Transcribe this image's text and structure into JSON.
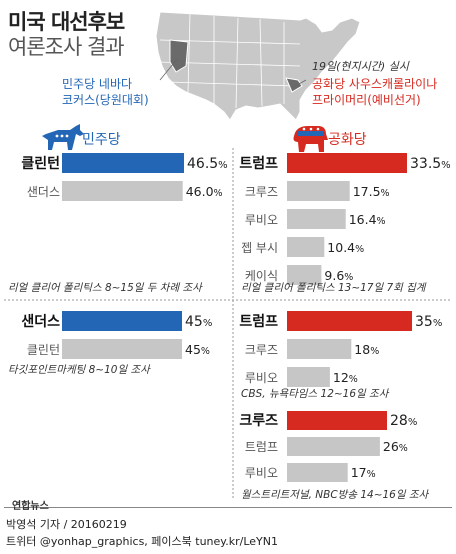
{
  "header": {
    "title_line1": "미국 대선후보",
    "title_line2": "여론조사 결과",
    "date": "19일(현지시간) 실시"
  },
  "map": {
    "nevada_label_line1": "민주당 네바다",
    "nevada_label_line2": "코커스(당원대회)",
    "sc_label_line1": "공화당 사우스캐롤라이나",
    "sc_label_line2": "프라이머리(예비선거)",
    "colors": {
      "land": "#c8c8c8",
      "border": "#ffffff",
      "nevada": "#6a6a6a",
      "sc": "#6a6a6a"
    }
  },
  "parties": {
    "democrat": {
      "label": "민주당",
      "color": "#2366b5",
      "icon": "donkey-icon"
    },
    "republican": {
      "label": "공화당",
      "color": "#d62a20",
      "icon": "elephant-icon"
    }
  },
  "colors": {
    "gray_bar": "#c6c6c6",
    "divider": "#999999"
  },
  "chart_data": [
    {
      "type": "bar",
      "party": "democrat",
      "categories": [
        "클린턴",
        "샌더스"
      ],
      "values": [
        46.5,
        46.0
      ],
      "value_labels": [
        "46.5",
        "46.0"
      ],
      "unit": "%",
      "leader_index": 0,
      "source": "리얼 클리어 폴리틱스 8~15일 두 차례 조사"
    },
    {
      "type": "bar",
      "party": "republican",
      "categories": [
        "트럼프",
        "크루즈",
        "루비오",
        "젭 부시",
        "케이식"
      ],
      "values": [
        33.5,
        17.5,
        16.4,
        10.4,
        9.6
      ],
      "value_labels": [
        "33.5",
        "17.5",
        "16.4",
        "10.4",
        "9.6"
      ],
      "unit": "%",
      "leader_index": 0,
      "source": "리얼 클리어 폴리틱스 13~17일 7회 집계"
    },
    {
      "type": "bar",
      "party": "democrat",
      "categories": [
        "샌더스",
        "클린턴"
      ],
      "values": [
        45,
        45
      ],
      "value_labels": [
        "45",
        "45"
      ],
      "unit": "%",
      "leader_index": 0,
      "source": "타깃포인트마케팅 8~10일 조사"
    },
    {
      "type": "bar",
      "party": "republican",
      "categories": [
        "트럼프",
        "크루즈",
        "루비오"
      ],
      "values": [
        35,
        18,
        12
      ],
      "value_labels": [
        "35",
        "18",
        "12"
      ],
      "unit": "%",
      "leader_index": 0,
      "source": "CBS, 뉴욕타임스 12~16일 조사"
    },
    {
      "type": "bar",
      "party": "republican",
      "categories": [
        "크루즈",
        "트럼프",
        "루비오"
      ],
      "values": [
        28,
        26,
        17
      ],
      "value_labels": [
        "28",
        "26",
        "17"
      ],
      "unit": "%",
      "leader_index": 0,
      "source": "월스트리트저널, NBC방송 14~16일 조사"
    }
  ],
  "footer": {
    "logo": "연합뉴스",
    "reporter": "박영석 기자 / 20160219",
    "social": "트위터 @yonhap_graphics, 페이스북 tuney.kr/LeYN1"
  }
}
